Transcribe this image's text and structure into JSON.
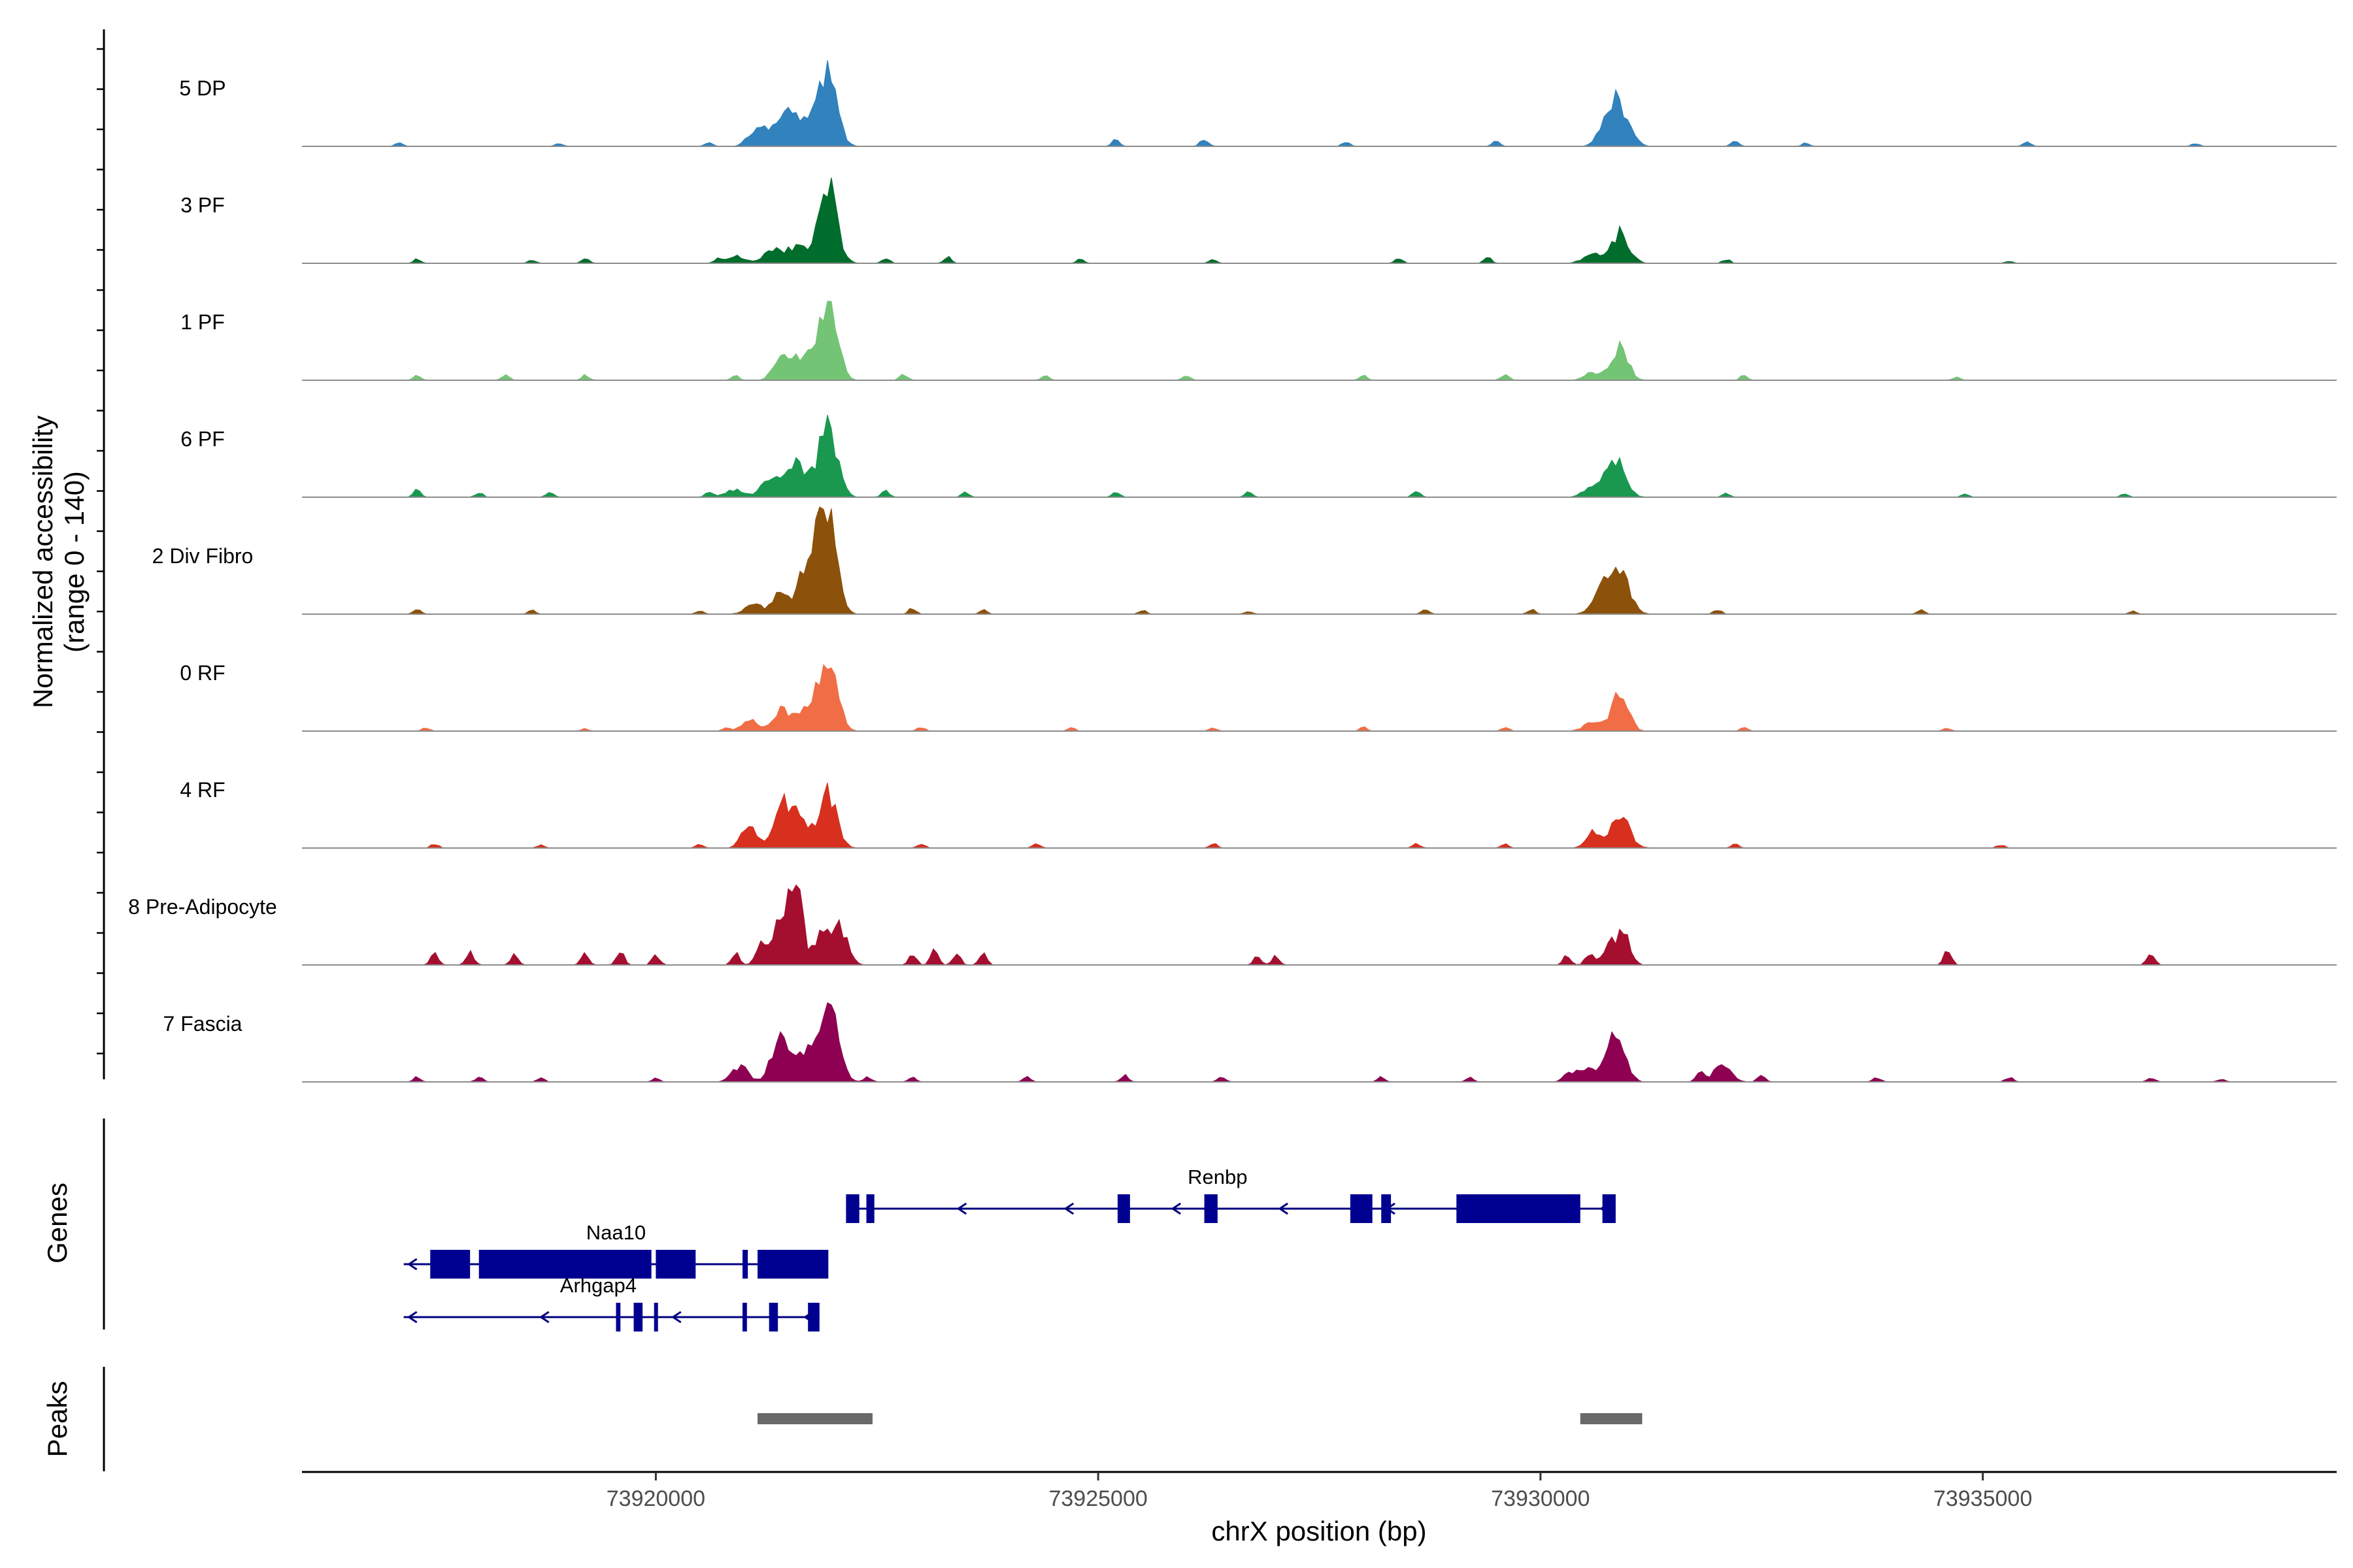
{
  "chart_data": {
    "type": "area",
    "title": "",
    "chromosome": "chrX",
    "xlabel": "chrX position (bp)",
    "ylabel_line1": "Normalized accessibility",
    "ylabel_line2": "(range 0 - 140)",
    "xlim": [
      73916000,
      73939000
    ],
    "ylim": [
      0,
      140
    ],
    "x_ticks": [
      73920000,
      73925000,
      73930000,
      73935000
    ],
    "x_tick_labels": [
      "73920000",
      "73925000",
      "73930000",
      "73935000"
    ],
    "grid": false,
    "series": [
      {
        "name": "5 DP",
        "color": "#3182bd",
        "background": [
          [
            73917100,
            4
          ],
          [
            73918900,
            4
          ],
          [
            73920600,
            5
          ],
          [
            73925200,
            8
          ],
          [
            73926200,
            10
          ],
          [
            73927800,
            6
          ],
          [
            73929500,
            6
          ],
          [
            73932200,
            7
          ],
          [
            73933000,
            4
          ],
          [
            73935500,
            6
          ],
          [
            73937400,
            4
          ]
        ],
        "peaks": [
          {
            "x": 73921150,
            "h": 22,
            "w": 140
          },
          {
            "x": 73921300,
            "h": 12,
            "w": 120
          },
          {
            "x": 73921450,
            "h": 28,
            "w": 100
          },
          {
            "x": 73921650,
            "h": 38,
            "w": 180
          },
          {
            "x": 73921950,
            "h": 96,
            "w": 140
          },
          {
            "x": 73930750,
            "h": 28,
            "w": 130
          },
          {
            "x": 73930900,
            "h": 48,
            "w": 150
          }
        ]
      },
      {
        "name": "3 PF",
        "color": "#006d2c",
        "background": [
          [
            73917300,
            5
          ],
          [
            73918600,
            4
          ],
          [
            73919200,
            6
          ],
          [
            73920700,
            5
          ],
          [
            73922600,
            7
          ],
          [
            73923300,
            9
          ],
          [
            73924800,
            5
          ],
          [
            73926300,
            5
          ],
          [
            73928400,
            6
          ],
          [
            73929400,
            8
          ],
          [
            73932100,
            5
          ],
          [
            73935300,
            3
          ]
        ],
        "peaks": [
          {
            "x": 73920900,
            "h": 10,
            "w": 150
          },
          {
            "x": 73921300,
            "h": 16,
            "w": 130
          },
          {
            "x": 73921600,
            "h": 22,
            "w": 180
          },
          {
            "x": 73921950,
            "h": 96,
            "w": 140
          },
          {
            "x": 73930600,
            "h": 12,
            "w": 150
          },
          {
            "x": 73930900,
            "h": 38,
            "w": 140
          }
        ]
      },
      {
        "name": "1 PF",
        "color": "#74c476",
        "background": [
          [
            73917300,
            7
          ],
          [
            73918300,
            6
          ],
          [
            73919200,
            6
          ],
          [
            73920900,
            6
          ],
          [
            73922800,
            8
          ],
          [
            73924400,
            6
          ],
          [
            73926000,
            7
          ],
          [
            73928000,
            6
          ],
          [
            73929600,
            8
          ],
          [
            73932300,
            6
          ],
          [
            73934700,
            4
          ]
        ],
        "peaks": [
          {
            "x": 73921400,
            "h": 22,
            "w": 120
          },
          {
            "x": 73921650,
            "h": 32,
            "w": 180
          },
          {
            "x": 73921950,
            "h": 96,
            "w": 140
          },
          {
            "x": 73930600,
            "h": 10,
            "w": 130
          },
          {
            "x": 73930900,
            "h": 40,
            "w": 130
          }
        ]
      },
      {
        "name": "6 PF",
        "color": "#1a9850",
        "background": [
          [
            73917300,
            9
          ],
          [
            73918000,
            6
          ],
          [
            73918800,
            7
          ],
          [
            73920600,
            6
          ],
          [
            73922600,
            8
          ],
          [
            73923500,
            6
          ],
          [
            73925200,
            7
          ],
          [
            73926700,
            6
          ],
          [
            73928600,
            8
          ],
          [
            73932100,
            5
          ],
          [
            73934800,
            4
          ],
          [
            73936600,
            4
          ]
        ],
        "peaks": [
          {
            "x": 73920900,
            "h": 9,
            "w": 160
          },
          {
            "x": 73921300,
            "h": 24,
            "w": 140
          },
          {
            "x": 73921600,
            "h": 40,
            "w": 180
          },
          {
            "x": 73921950,
            "h": 92,
            "w": 140
          },
          {
            "x": 73930600,
            "h": 14,
            "w": 150
          },
          {
            "x": 73930850,
            "h": 44,
            "w": 150
          }
        ]
      },
      {
        "name": "2 Div Fibro",
        "color": "#8c510a",
        "background": [
          [
            73917300,
            6
          ],
          [
            73918600,
            5
          ],
          [
            73920500,
            5
          ],
          [
            73922900,
            8
          ],
          [
            73923700,
            5
          ],
          [
            73925500,
            5
          ],
          [
            73926700,
            4
          ],
          [
            73928700,
            6
          ],
          [
            73929900,
            6
          ],
          [
            73932000,
            6
          ],
          [
            73934300,
            5
          ],
          [
            73936700,
            4
          ]
        ],
        "peaks": [
          {
            "x": 73921100,
            "h": 14,
            "w": 130
          },
          {
            "x": 73921400,
            "h": 30,
            "w": 110
          },
          {
            "x": 73921750,
            "h": 72,
            "w": 170
          },
          {
            "x": 73921950,
            "h": 110,
            "w": 140
          },
          {
            "x": 73930700,
            "h": 28,
            "w": 150
          },
          {
            "x": 73930900,
            "h": 48,
            "w": 150
          }
        ]
      },
      {
        "name": "0 RF",
        "color": "#f16d45",
        "background": [
          [
            73917400,
            4
          ],
          [
            73919200,
            3
          ],
          [
            73920800,
            4
          ],
          [
            73923000,
            5
          ],
          [
            73924700,
            4
          ],
          [
            73926300,
            4
          ],
          [
            73928000,
            5
          ],
          [
            73929600,
            5
          ],
          [
            73932300,
            4
          ],
          [
            73934600,
            4
          ]
        ],
        "peaks": [
          {
            "x": 73921050,
            "h": 14,
            "w": 120
          },
          {
            "x": 73921400,
            "h": 26,
            "w": 120
          },
          {
            "x": 73921700,
            "h": 30,
            "w": 170
          },
          {
            "x": 73921950,
            "h": 90,
            "w": 140
          },
          {
            "x": 73930600,
            "h": 12,
            "w": 140
          },
          {
            "x": 73930900,
            "h": 46,
            "w": 130
          }
        ]
      },
      {
        "name": "4 RF",
        "color": "#d7301f",
        "background": [
          [
            73917500,
            5
          ],
          [
            73918700,
            4
          ],
          [
            73920500,
            5
          ],
          [
            73923000,
            6
          ],
          [
            73924300,
            7
          ],
          [
            73926300,
            6
          ],
          [
            73928600,
            5
          ],
          [
            73929600,
            5
          ],
          [
            73932200,
            6
          ],
          [
            73935200,
            4
          ]
        ],
        "peaks": [
          {
            "x": 73921050,
            "h": 32,
            "w": 110
          },
          {
            "x": 73921450,
            "h": 52,
            "w": 150
          },
          {
            "x": 73921650,
            "h": 28,
            "w": 140
          },
          {
            "x": 73921950,
            "h": 66,
            "w": 140
          },
          {
            "x": 73930600,
            "h": 20,
            "w": 120
          },
          {
            "x": 73930900,
            "h": 38,
            "w": 150
          }
        ]
      },
      {
        "name": "8 Pre-Adipocyte",
        "color": "#a50f2f",
        "background": [
          [
            73917500,
            14
          ],
          [
            73917900,
            18
          ],
          [
            73918400,
            12
          ],
          [
            73919200,
            14
          ],
          [
            73919600,
            18
          ],
          [
            73920000,
            12
          ],
          [
            73920900,
            16
          ],
          [
            73922900,
            14
          ],
          [
            73923150,
            18
          ],
          [
            73923400,
            16
          ],
          [
            73923700,
            14
          ],
          [
            73926800,
            12
          ],
          [
            73927000,
            10
          ],
          [
            73930300,
            12
          ],
          [
            73930550,
            14
          ],
          [
            73934600,
            18
          ],
          [
            73936900,
            16
          ]
        ],
        "peaks": [
          {
            "x": 73921200,
            "h": 26,
            "w": 90
          },
          {
            "x": 73921450,
            "h": 70,
            "w": 130
          },
          {
            "x": 73921600,
            "h": 100,
            "w": 80
          },
          {
            "x": 73921900,
            "h": 46,
            "w": 150
          },
          {
            "x": 73922100,
            "h": 40,
            "w": 120
          },
          {
            "x": 73930800,
            "h": 26,
            "w": 120
          },
          {
            "x": 73930950,
            "h": 32,
            "w": 100
          }
        ]
      },
      {
        "name": "7 Fascia",
        "color": "#8e0152",
        "background": [
          [
            73917300,
            6
          ],
          [
            73918000,
            6
          ],
          [
            73918700,
            5
          ],
          [
            73920000,
            5
          ],
          [
            73922400,
            6
          ],
          [
            73922900,
            6
          ],
          [
            73924200,
            6
          ],
          [
            73925300,
            8
          ],
          [
            73926400,
            7
          ],
          [
            73928200,
            6
          ],
          [
            73929200,
            6
          ],
          [
            73930300,
            10
          ],
          [
            73931800,
            12
          ],
          [
            73932500,
            8
          ],
          [
            73933800,
            6
          ],
          [
            73935300,
            6
          ],
          [
            73936900,
            6
          ],
          [
            73937700,
            4
          ]
        ],
        "peaks": [
          {
            "x": 73920950,
            "h": 20,
            "w": 130
          },
          {
            "x": 73921400,
            "h": 56,
            "w": 130
          },
          {
            "x": 73921650,
            "h": 34,
            "w": 160
          },
          {
            "x": 73921950,
            "h": 102,
            "w": 150
          },
          {
            "x": 73930500,
            "h": 16,
            "w": 170
          },
          {
            "x": 73930850,
            "h": 68,
            "w": 140
          },
          {
            "x": 73932050,
            "h": 20,
            "w": 140
          }
        ]
      }
    ],
    "genes": [
      {
        "name": "Renbp",
        "strand": "-",
        "start": 73922150,
        "end": 73930850,
        "row": 0,
        "exons": [
          [
            73922150,
            73922300
          ],
          [
            73922380,
            73922470
          ],
          [
            73925220,
            73925360
          ],
          [
            73926200,
            73926350
          ],
          [
            73927850,
            73928100
          ],
          [
            73928200,
            73928310
          ],
          [
            73929050,
            73930450
          ],
          [
            73930700,
            73930850
          ]
        ]
      },
      {
        "name": "Naa10",
        "strand": "-",
        "start": 73917150,
        "end": 73921950,
        "row": 1,
        "exons": [
          [
            73917450,
            73917900
          ],
          [
            73918000,
            73919950
          ],
          [
            73920000,
            73920450
          ],
          [
            73920980,
            73921040
          ],
          [
            73921150,
            73921950
          ]
        ]
      },
      {
        "name": "Arhgap4",
        "strand": "-",
        "start": 73917150,
        "end": 73921850,
        "row": 2,
        "exons": [
          [
            73919550,
            73919600
          ],
          [
            73919750,
            73919850
          ],
          [
            73919980,
            73920020
          ],
          [
            73920980,
            73921030
          ],
          [
            73921280,
            73921380
          ],
          [
            73921720,
            73921850
          ]
        ]
      }
    ],
    "peak_regions": [
      {
        "start": 73921150,
        "end": 73922450
      },
      {
        "start": 73930450,
        "end": 73931150
      }
    ],
    "panel_labels": {
      "genes": "Genes",
      "peaks": "Peaks"
    }
  }
}
